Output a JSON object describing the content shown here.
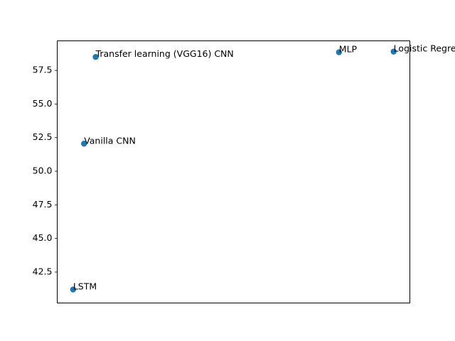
{
  "chart_data": {
    "type": "scatter",
    "title": "",
    "xlabel": "",
    "ylabel": "",
    "grid": false,
    "x_ticks_visible": false,
    "ylim": [
      40.2,
      59.7
    ],
    "xlim": [
      0,
      1
    ],
    "y_ticks": [
      "42.5",
      "45.0",
      "47.5",
      "50.0",
      "52.5",
      "55.0",
      "57.5"
    ],
    "y_tick_values": [
      42.5,
      45.0,
      47.5,
      50.0,
      52.5,
      55.0,
      57.5
    ],
    "marker_color": "#1f77b4",
    "points": [
      {
        "label": "LSTM",
        "x": 0.045,
        "y": 41.2
      },
      {
        "label": "Vanilla CNN",
        "x": 0.076,
        "y": 52.05
      },
      {
        "label": "Transfer learning (VGG16) CNN",
        "x": 0.109,
        "y": 58.5
      },
      {
        "label": "MLP",
        "x": 0.799,
        "y": 58.85
      },
      {
        "label": "Logistic Regression",
        "x": 0.954,
        "y": 58.9
      }
    ]
  }
}
